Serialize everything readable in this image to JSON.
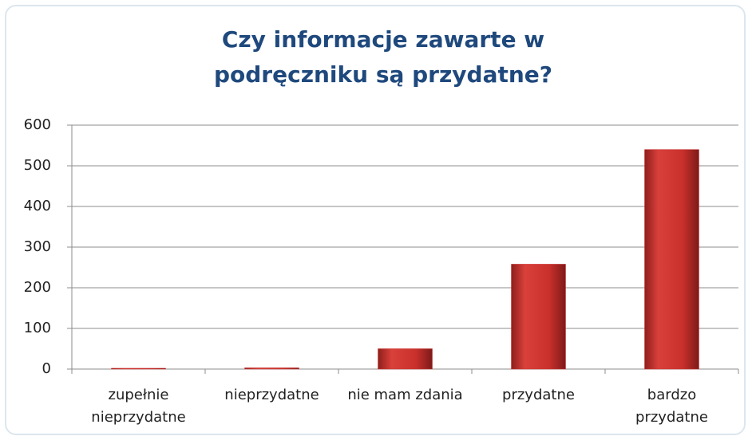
{
  "chart_data": {
    "type": "bar",
    "title": "Czy informacje zawarte w podręczniku są przydatne?",
    "categories": [
      "zupełnie nieprzydatne",
      "nieprzydatne",
      "nie mam zdania",
      "przydatne",
      "bardzo przydatne"
    ],
    "values": [
      2,
      3,
      50,
      258,
      540
    ],
    "color": "#c9302c",
    "ylim": [
      0,
      600
    ],
    "yticks": [
      0,
      100,
      200,
      300,
      400,
      500,
      600
    ],
    "grid": true
  }
}
